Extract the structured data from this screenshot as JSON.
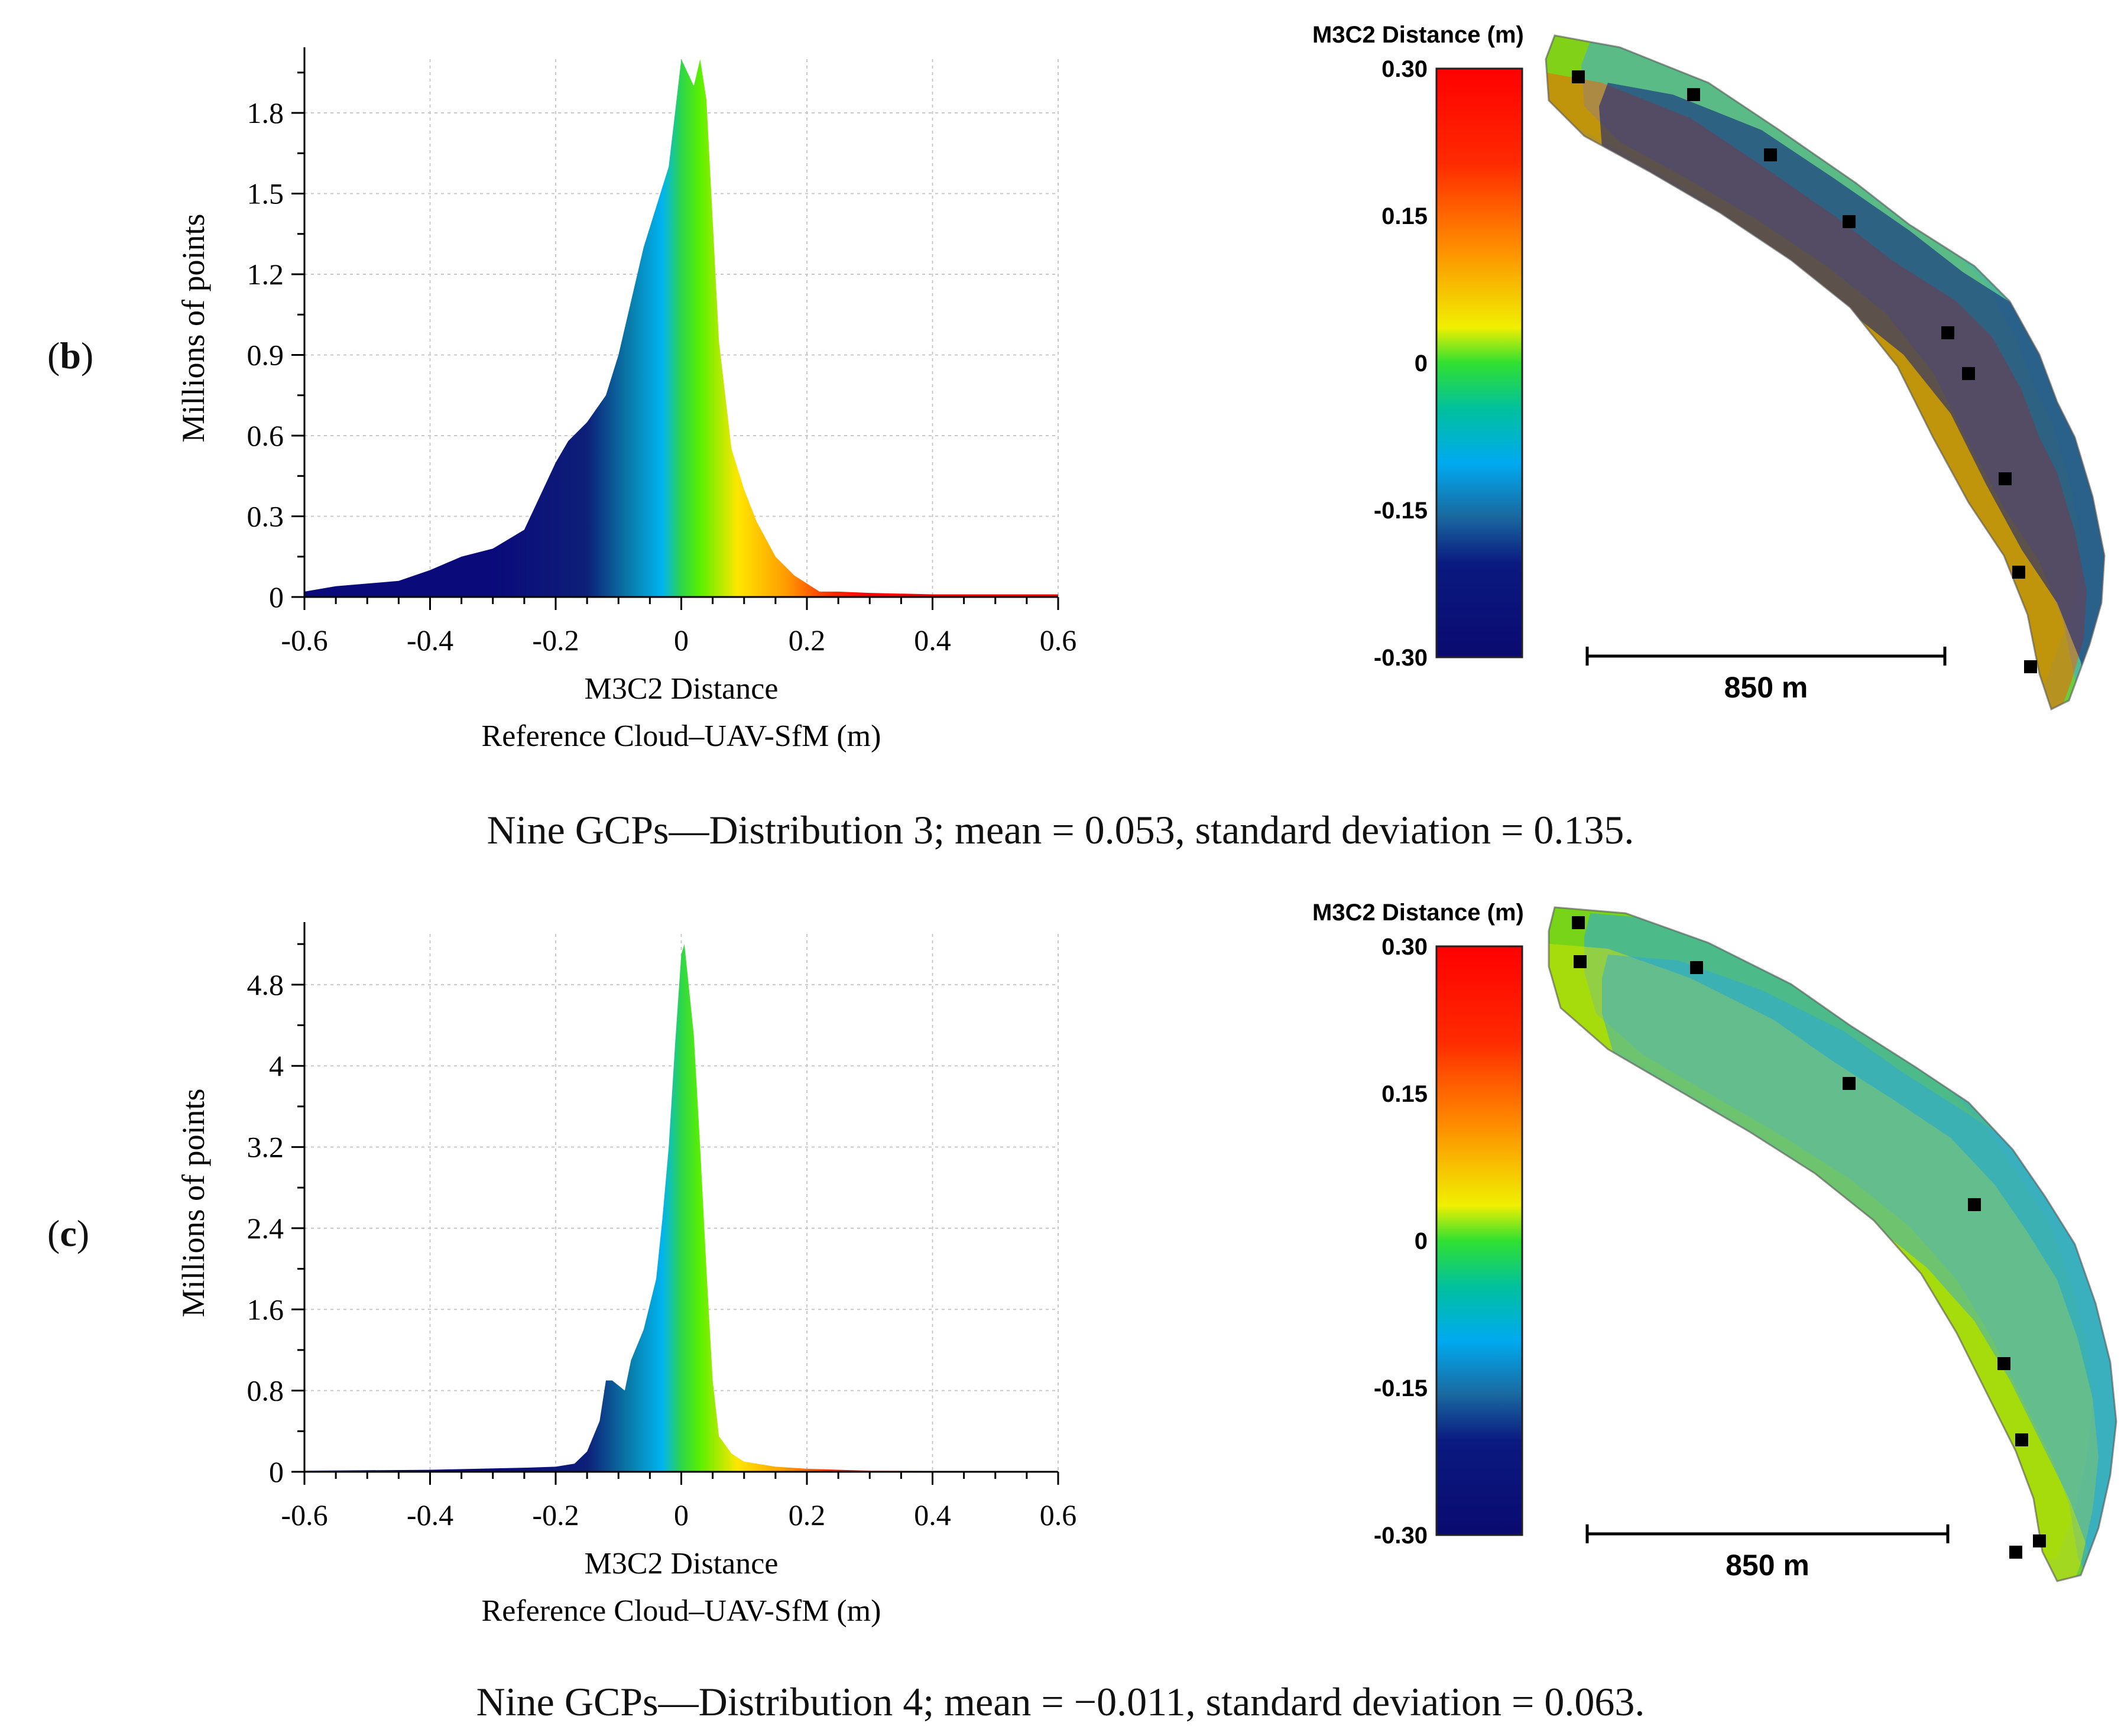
{
  "panels": [
    {
      "id": "b",
      "label_open": "(",
      "label_letter": "b",
      "label_close": ")",
      "caption": "Nine GCPs—Distribution 3; mean = 0.053, standard deviation = 0.135.",
      "scale_label": "850 m",
      "colorbar": {
        "title": "M3C2 Distance (m)",
        "ticks": [
          "0.30",
          "0.15",
          "0",
          "-0.15",
          "-0.30"
        ]
      },
      "gcps_count": 9
    },
    {
      "id": "c",
      "label_open": "(",
      "label_letter": "c",
      "label_close": ")",
      "caption": "Nine GCPs—Distribution 4; mean = −0.011, standard deviation = 0.063.",
      "scale_label": "850 m",
      "colorbar": {
        "title": "M3C2 Distance (m)",
        "ticks": [
          "0.30",
          "0.15",
          "0",
          "-0.15",
          "-0.30"
        ]
      },
      "gcps_count": 9
    }
  ],
  "chart_data": [
    {
      "type": "area",
      "title": "",
      "xlabel": "M3C2 Distance",
      "xlabel2": "Reference Cloud–UAV-SfM (m)",
      "ylabel": "Millions of points",
      "xlim": [
        -0.6,
        0.6
      ],
      "ylim": [
        0,
        2.0
      ],
      "xticks": [
        "-0.6",
        "-0.4",
        "-0.2",
        "0",
        "0.2",
        "0.4",
        "0.6"
      ],
      "xtick_values": [
        -0.6,
        -0.4,
        -0.2,
        0,
        0.2,
        0.4,
        0.6
      ],
      "yticks": [
        "0",
        "0.3",
        "0.6",
        "0.9",
        "1.2",
        "1.5",
        "1.8"
      ],
      "ytick_values": [
        0,
        0.3,
        0.6,
        0.9,
        1.2,
        1.5,
        1.8
      ],
      "grid": true,
      "x": [
        -0.6,
        -0.55,
        -0.5,
        -0.45,
        -0.4,
        -0.35,
        -0.3,
        -0.25,
        -0.2,
        -0.18,
        -0.15,
        -0.12,
        -0.1,
        -0.08,
        -0.06,
        -0.04,
        -0.02,
        0.0,
        0.01,
        0.02,
        0.03,
        0.04,
        0.05,
        0.06,
        0.08,
        0.1,
        0.12,
        0.15,
        0.18,
        0.2,
        0.22,
        0.25,
        0.3,
        0.4,
        0.5,
        0.6
      ],
      "y": [
        0.02,
        0.04,
        0.05,
        0.06,
        0.1,
        0.15,
        0.18,
        0.25,
        0.5,
        0.58,
        0.65,
        0.75,
        0.9,
        1.1,
        1.3,
        1.45,
        1.6,
        2.0,
        1.95,
        1.9,
        2.0,
        1.85,
        1.4,
        0.95,
        0.55,
        0.4,
        0.28,
        0.15,
        0.08,
        0.05,
        0.02,
        0.02,
        0.015,
        0.01,
        0.01,
        0.01
      ]
    },
    {
      "type": "area",
      "title": "",
      "xlabel": "M3C2 Distance",
      "xlabel2": "Reference Cloud–UAV-SfM (m)",
      "ylabel": "Millions of points",
      "xlim": [
        -0.6,
        0.6
      ],
      "ylim": [
        0,
        5.3
      ],
      "xticks": [
        "-0.6",
        "-0.4",
        "-0.2",
        "0",
        "0.2",
        "0.4",
        "0.6"
      ],
      "xtick_values": [
        -0.6,
        -0.4,
        -0.2,
        0,
        0.2,
        0.4,
        0.6
      ],
      "yticks": [
        "0",
        "0.8",
        "1.6",
        "2.4",
        "3.2",
        "4",
        "4.8"
      ],
      "ytick_values": [
        0,
        0.8,
        1.6,
        2.4,
        3.2,
        4,
        4.8
      ],
      "grid": true,
      "x": [
        -0.6,
        -0.4,
        -0.25,
        -0.2,
        -0.17,
        -0.15,
        -0.13,
        -0.12,
        -0.11,
        -0.1,
        -0.09,
        -0.08,
        -0.06,
        -0.04,
        -0.03,
        -0.02,
        -0.01,
        0.0,
        0.005,
        0.01,
        0.02,
        0.03,
        0.04,
        0.05,
        0.06,
        0.08,
        0.1,
        0.15,
        0.2,
        0.3,
        0.6
      ],
      "y": [
        0.01,
        0.02,
        0.04,
        0.05,
        0.08,
        0.2,
        0.5,
        0.9,
        0.9,
        0.85,
        0.8,
        1.1,
        1.4,
        1.9,
        2.5,
        3.2,
        4.2,
        5.1,
        5.2,
        4.9,
        4.3,
        3.2,
        2.0,
        0.9,
        0.35,
        0.18,
        0.1,
        0.05,
        0.03,
        0.01,
        0.005
      ]
    }
  ]
}
